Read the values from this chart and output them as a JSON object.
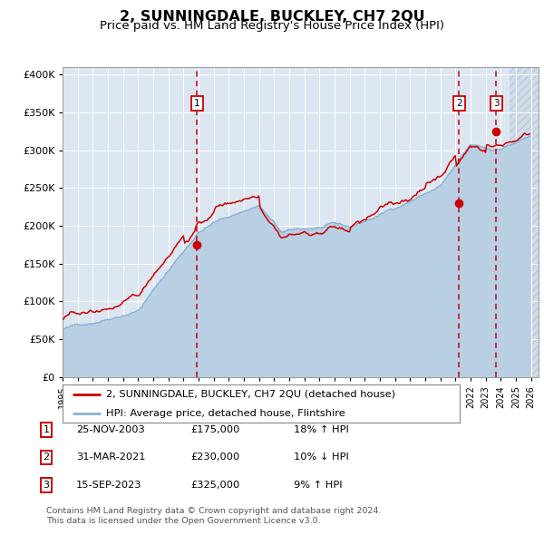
{
  "title": "2, SUNNINGDALE, BUCKLEY, CH7 2QU",
  "subtitle": "Price paid vs. HM Land Registry's House Price Index (HPI)",
  "title_fontsize": 11.5,
  "subtitle_fontsize": 9.5,
  "plot_bg_color": "#dce6f1",
  "grid_color": "#ffffff",
  "red_line_color": "#cc0000",
  "blue_line_color": "#8ab0d0",
  "blue_fill_color": "#b8cfe4",
  "sale_marker_color": "#cc0000",
  "vline_color": "#cc0000",
  "purchases": [
    {
      "label": "1",
      "date_num": 2003.9,
      "price": 175000,
      "text": "25-NOV-2003",
      "amount": "£175,000",
      "hpi_rel": "18% ↑ HPI"
    },
    {
      "label": "2",
      "date_num": 2021.25,
      "price": 230000,
      "text": "31-MAR-2021",
      "amount": "£230,000",
      "hpi_rel": "10% ↓ HPI"
    },
    {
      "label": "3",
      "date_num": 2023.71,
      "price": 325000,
      "text": "15-SEP-2023",
      "amount": "£325,000",
      "hpi_rel": "9% ↑ HPI"
    }
  ],
  "legend_line1": "2, SUNNINGDALE, BUCKLEY, CH7 2QU (detached house)",
  "legend_line2": "HPI: Average price, detached house, Flintshire",
  "footer1": "Contains HM Land Registry data © Crown copyright and database right 2024.",
  "footer2": "This data is licensed under the Open Government Licence v3.0.",
  "xmin": 1995.0,
  "xmax": 2026.5,
  "ymin": 0,
  "ymax": 410000,
  "yticks": [
    0,
    50000,
    100000,
    150000,
    200000,
    250000,
    300000,
    350000,
    400000
  ],
  "hatch_start": 2024.6
}
